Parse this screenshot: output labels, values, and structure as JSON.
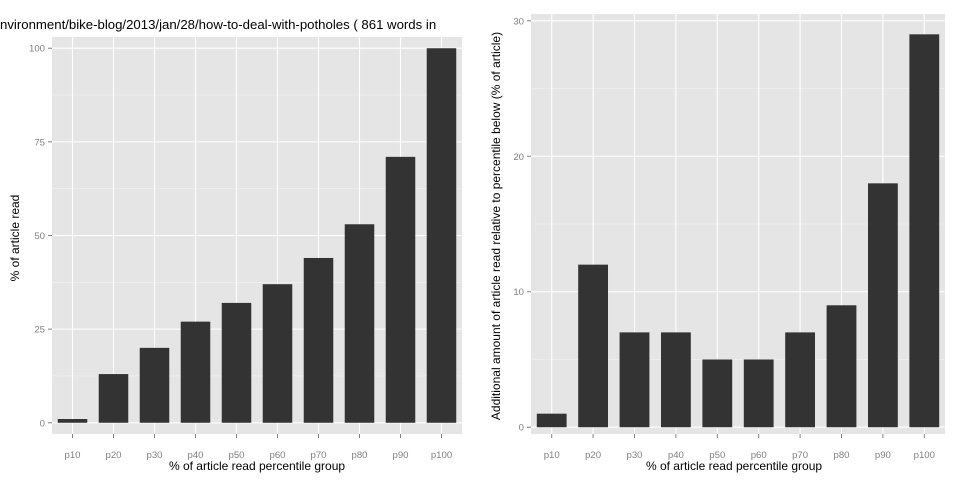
{
  "chart_data": [
    {
      "type": "bar",
      "title": "nvironment/bike-blog/2013/jan/28/how-to-deal-with-potholes ( 861 words in",
      "xlabel": "% of article read percentile group",
      "ylabel": "% of article read",
      "categories": [
        "p10",
        "p20",
        "p30",
        "p40",
        "p50",
        "p60",
        "p70",
        "p80",
        "p90",
        "p100"
      ],
      "values": [
        1,
        13,
        20,
        27,
        32,
        37,
        44,
        53,
        71,
        100
      ],
      "ylim": [
        -3,
        103
      ],
      "yticks": [
        0,
        25,
        50,
        75,
        100
      ],
      "grid": true,
      "legend": "none",
      "bar_color": "#333333",
      "panel_color": "#e5e5e5",
      "grid_color": "#ffffff"
    },
    {
      "type": "bar",
      "title": "",
      "xlabel": "% of article read percentile group",
      "ylabel": "Additional amount of article read relative to percentile below (% of article)",
      "categories": [
        "p10",
        "p20",
        "p30",
        "p40",
        "p50",
        "p60",
        "p70",
        "p80",
        "p90",
        "p100"
      ],
      "values": [
        1,
        12,
        7,
        7,
        5,
        5,
        7,
        9,
        18,
        29
      ],
      "ylim": [
        -0.5,
        30.5
      ],
      "yticks": [
        0,
        10,
        20,
        30
      ],
      "grid": true,
      "legend": "none",
      "bar_color": "#333333",
      "panel_color": "#e5e5e5",
      "grid_color": "#ffffff"
    }
  ]
}
